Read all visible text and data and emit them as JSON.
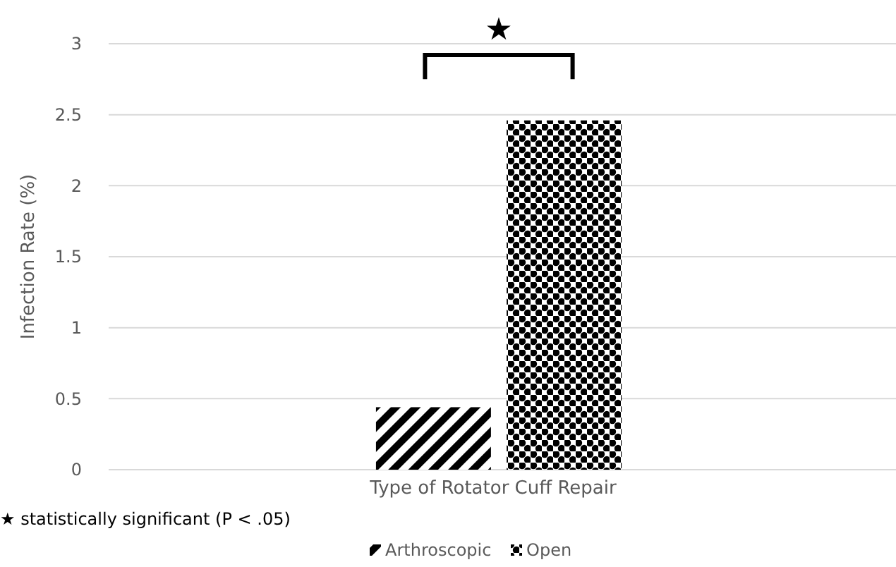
{
  "chart_data": {
    "type": "bar",
    "categories": [
      "Type of Rotator Cuff Repair"
    ],
    "series": [
      {
        "name": "Arthroscopic",
        "color": "#000000",
        "values": [
          0.44
        ]
      },
      {
        "name": "Open",
        "color": "#000000",
        "values": [
          2.46
        ]
      }
    ],
    "ylabel": "Infection Rate (%)",
    "ylim": [
      0,
      3
    ],
    "yticks": [
      0,
      0.5,
      1,
      1.5,
      2,
      2.5,
      3
    ],
    "grid": "y",
    "legend": "bottom",
    "annotations": [
      "★",
      "★ statistically significant (P < .05)"
    ]
  }
}
